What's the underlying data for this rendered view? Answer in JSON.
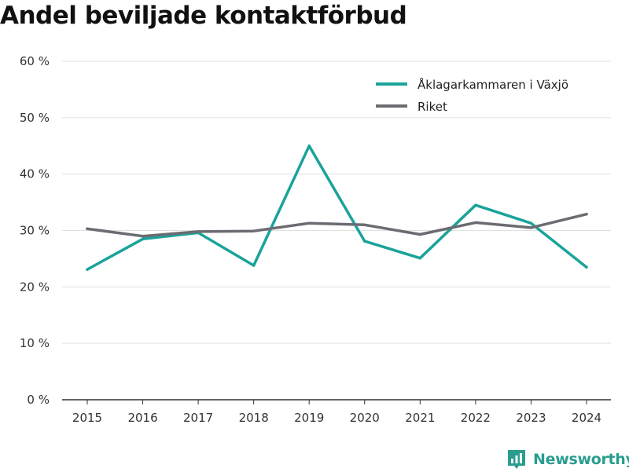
{
  "title": "Andel beviljade kontaktförbud",
  "brand": {
    "name": "Newsworthy",
    "icon": "newsworthy-logo-icon"
  },
  "chart_data": {
    "type": "line",
    "title": "Andel beviljade kontaktförbud",
    "categories": [
      "2015",
      "2016",
      "2017",
      "2018",
      "2019",
      "2020",
      "2021",
      "2022",
      "2023",
      "2024"
    ],
    "series": [
      {
        "name": "Åklagarkammaren i Växjö",
        "color": "#1aa39a",
        "values": [
          23.1,
          28.5,
          29.6,
          23.8,
          45.0,
          28.1,
          25.1,
          34.5,
          31.3,
          23.5
        ]
      },
      {
        "name": "Riket",
        "color": "#6b6b72",
        "values": [
          30.3,
          29.0,
          29.8,
          29.9,
          31.3,
          31.0,
          29.3,
          31.4,
          30.5,
          32.9
        ]
      }
    ],
    "ylim": [
      0,
      60
    ],
    "yticks": [
      0,
      10,
      20,
      30,
      40,
      50,
      60
    ],
    "ytick_labels": [
      "0 %",
      "10 %",
      "20 %",
      "30 %",
      "40 %",
      "50 %",
      "60 %"
    ],
    "xlabel": "",
    "ylabel": "",
    "grid": true,
    "legend_position": "top-right"
  }
}
